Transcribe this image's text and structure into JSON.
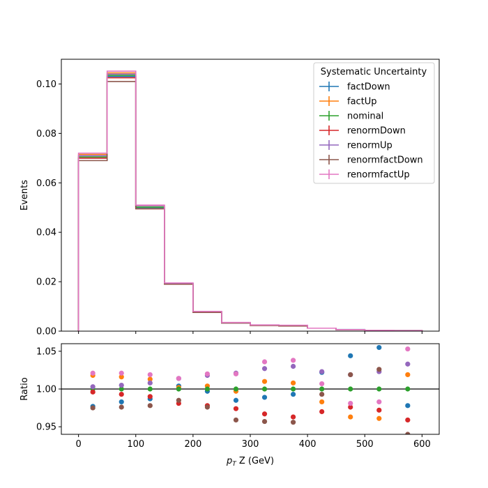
{
  "chart_data": {
    "type": "histogram-ratio",
    "bin_edges": [
      0,
      50,
      100,
      150,
      200,
      250,
      300,
      350,
      400,
      450,
      500,
      550,
      600
    ],
    "legend": {
      "title": "Systematic Uncertainty",
      "placement": "top-right"
    },
    "top": {
      "ylabel": "Events",
      "ylim": [
        0,
        0.11
      ],
      "yticks": [
        "0.00",
        "0.02",
        "0.04",
        "0.06",
        "0.08",
        "0.10"
      ],
      "ytick_values": [
        0,
        0.02,
        0.04,
        0.06,
        0.08,
        0.1
      ]
    },
    "bottom": {
      "ylabel": "Ratio",
      "ylim": [
        0.94,
        1.06
      ],
      "yticks": [
        "0.95",
        "1.00",
        "1.05"
      ],
      "ytick_values": [
        0.95,
        1.0,
        1.05
      ],
      "reference_line": 1.0
    },
    "x": {
      "xlabel_pre": "p",
      "xlabel_sub": "T",
      "xlabel_post": " Z (GeV)",
      "xlim": [
        -30,
        630
      ],
      "xticks": [
        "0",
        "100",
        "200",
        "300",
        "400",
        "500",
        "600"
      ],
      "xtick_values": [
        0,
        100,
        200,
        300,
        400,
        500,
        600
      ]
    },
    "series": [
      {
        "name": "factDown",
        "color": "#1f77b4",
        "values": [
          0.07,
          0.103,
          0.05,
          0.0193,
          0.0078,
          0.0033,
          0.0024,
          0.0022,
          0.0012,
          0.00065,
          0.00032,
          0.00022
        ],
        "ratio": [
          0.977,
          0.983,
          0.987,
          1.004,
          0.997,
          0.985,
          0.989,
          0.993,
          1.022,
          1.044,
          1.055,
          0.978
        ]
      },
      {
        "name": "factUp",
        "color": "#ff7f0e",
        "values": [
          0.0715,
          0.1045,
          0.0508,
          0.0192,
          0.0078,
          0.0034,
          0.0024,
          0.0022,
          0.0012,
          0.0006,
          0.0003,
          0.00022
        ],
        "ratio": [
          1.018,
          1.016,
          1.013,
          1.002,
          1.004,
          0.997,
          1.01,
          1.008,
          0.983,
          0.963,
          0.961,
          1.019
        ]
      },
      {
        "name": "nominal",
        "color": "#2ca02c",
        "values": [
          0.0705,
          0.1035,
          0.0502,
          0.0192,
          0.0078,
          0.0034,
          0.0024,
          0.0022,
          0.0012,
          0.00062,
          0.00031,
          0.00022
        ],
        "ratio": [
          1.0,
          1.0,
          1.0,
          1.0,
          1.0,
          1.0,
          1.0,
          1.0,
          1.0,
          1.0,
          1.0,
          1.0
        ]
      },
      {
        "name": "renormDown",
        "color": "#d62728",
        "values": [
          0.07,
          0.1025,
          0.0495,
          0.019,
          0.0076,
          0.0033,
          0.0023,
          0.0021,
          0.0012,
          0.0006,
          0.0003,
          0.00021
        ],
        "ratio": [
          0.996,
          0.993,
          0.99,
          0.981,
          0.978,
          0.974,
          0.967,
          0.963,
          0.97,
          0.976,
          0.972,
          0.959
        ]
      },
      {
        "name": "renormUp",
        "color": "#9467bd",
        "values": [
          0.071,
          0.104,
          0.0508,
          0.0194,
          0.0079,
          0.0034,
          0.0025,
          0.0023,
          0.0012,
          0.00063,
          0.00032,
          0.00023
        ],
        "ratio": [
          1.003,
          1.005,
          1.008,
          1.014,
          1.018,
          1.021,
          1.027,
          1.03,
          1.023,
          1.019,
          1.023,
          1.033
        ]
      },
      {
        "name": "renormfactDown",
        "color": "#8c564b",
        "values": [
          0.069,
          0.101,
          0.0495,
          0.019,
          0.0076,
          0.0033,
          0.0023,
          0.0021,
          0.0012,
          0.0006,
          0.0003,
          0.0002
        ],
        "ratio": [
          0.975,
          0.976,
          0.978,
          0.985,
          0.976,
          0.959,
          0.957,
          0.956,
          0.993,
          1.019,
          1.026,
          0.94
        ]
      },
      {
        "name": "renormfactUp",
        "color": "#e377c2",
        "values": [
          0.072,
          0.1052,
          0.051,
          0.0195,
          0.008,
          0.0035,
          0.0025,
          0.0024,
          0.0012,
          0.00062,
          0.00032,
          0.00023
        ],
        "ratio": [
          1.021,
          1.021,
          1.019,
          1.014,
          1.02,
          1.02,
          1.036,
          1.038,
          1.007,
          0.981,
          0.983,
          1.053
        ]
      }
    ]
  }
}
